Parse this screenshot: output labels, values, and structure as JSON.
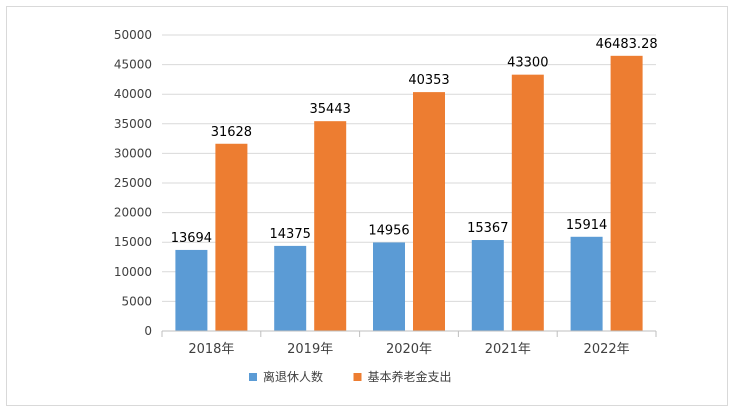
{
  "chart_data": {
    "type": "bar",
    "categories": [
      "2018年",
      "2019年",
      "2020年",
      "2021年",
      "2022年"
    ],
    "series": [
      {
        "name": "离退休人数",
        "values": [
          13694,
          14375,
          14956,
          15367,
          15914
        ],
        "data_labels": [
          "13694",
          "14375",
          "14956",
          "15367",
          "15914"
        ],
        "color": "#5b9bd5"
      },
      {
        "name": "基本养老金支出",
        "values": [
          31628,
          35443,
          40353,
          43300,
          46483.28
        ],
        "data_labels": [
          "31628",
          "35443",
          "40353",
          "43300",
          "46483.28"
        ],
        "color": "#ed7d31"
      }
    ],
    "ylim": [
      0,
      50000
    ],
    "yticks": [
      "0",
      "5000",
      "10000",
      "15000",
      "20000",
      "25000",
      "30000",
      "35000",
      "40000",
      "45000",
      "50000"
    ],
    "grid": true,
    "legend_position": "bottom",
    "gridline_color": "#d9d9d9",
    "axis_color": "#bfbfbf"
  }
}
